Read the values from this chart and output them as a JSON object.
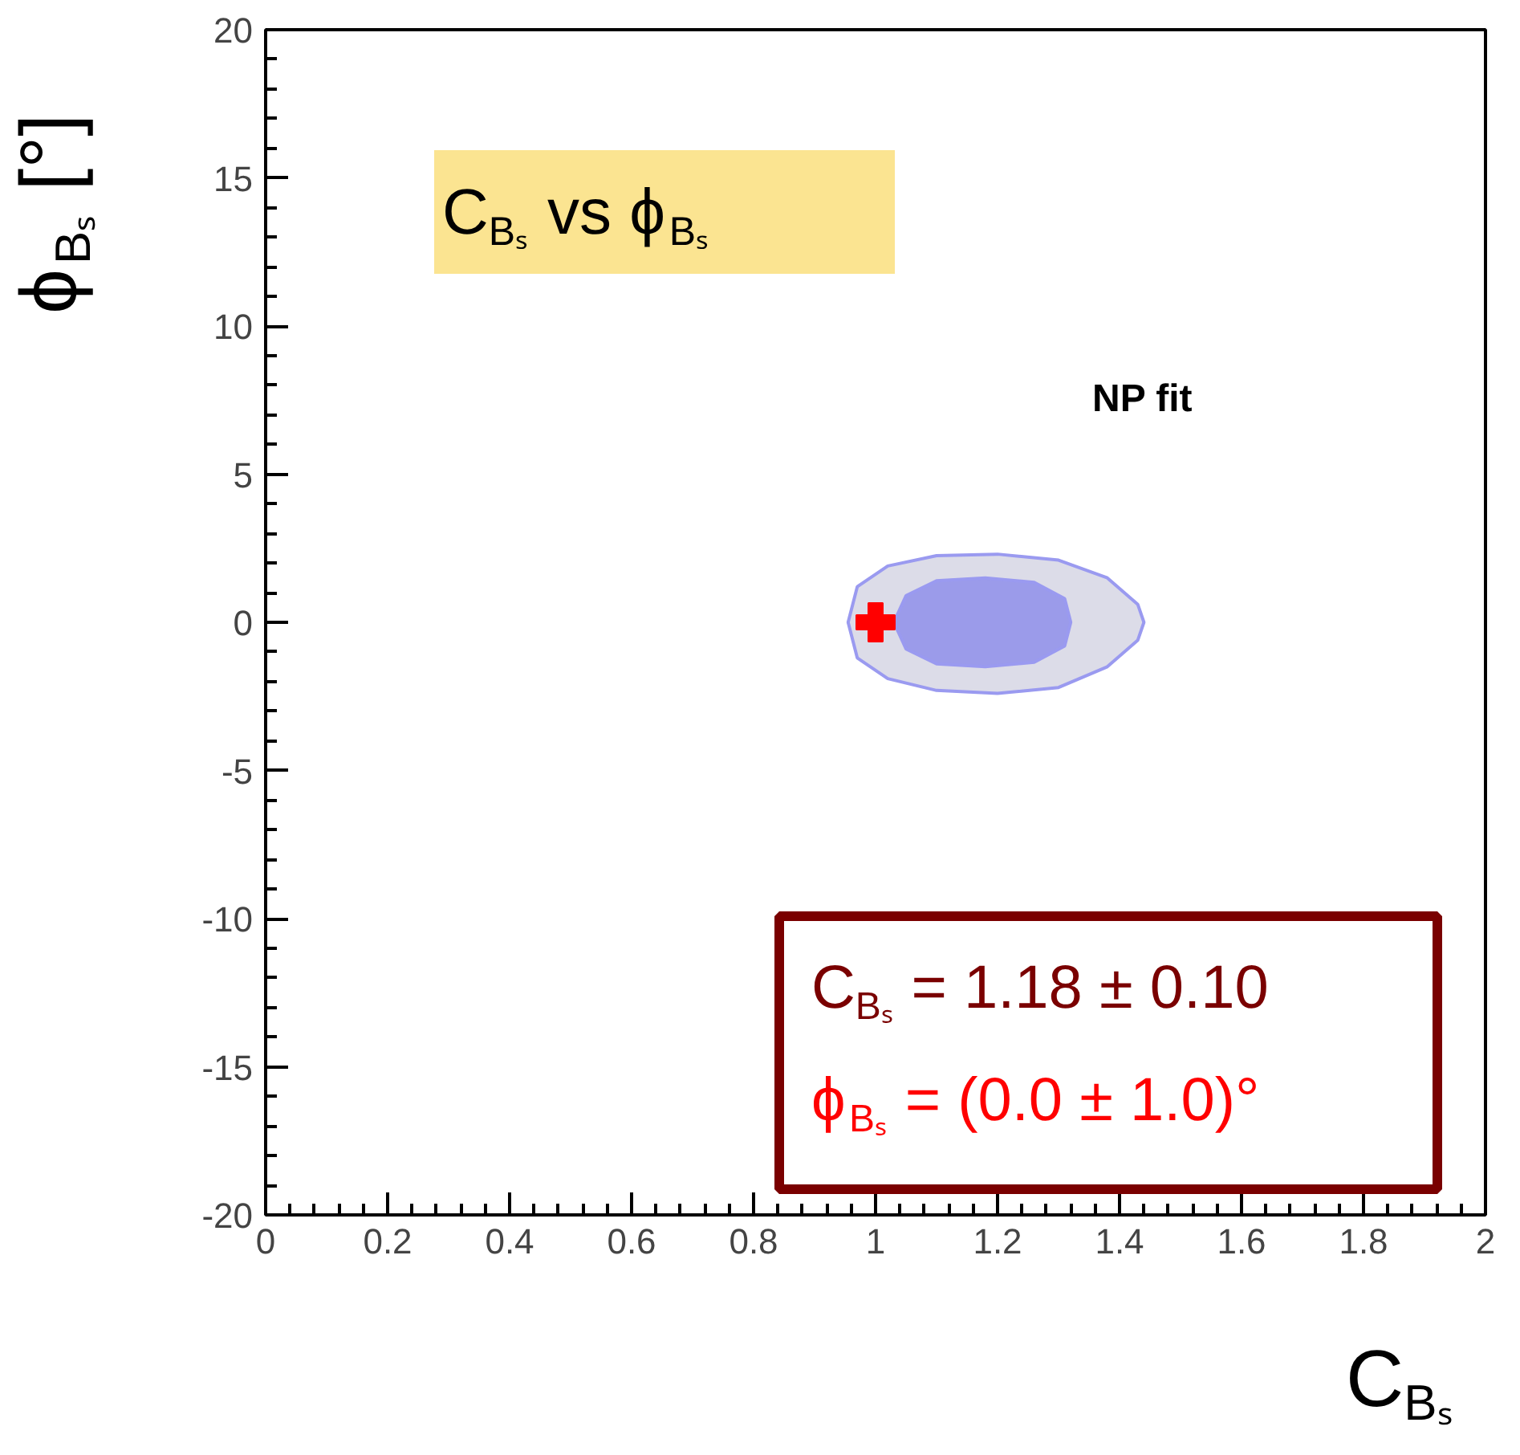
{
  "chart_data": {
    "type": "scatter",
    "xlabel": "C$_{Bₛ}$",
    "ylabel": "ϕ$_{Bₛ}$ [°]",
    "xlim": [
      0,
      2
    ],
    "ylim": [
      -20,
      20
    ],
    "xticks": [
      0,
      0.2,
      0.4,
      0.6,
      0.8,
      1,
      1.2,
      1.4,
      1.6,
      1.8,
      2
    ],
    "yticks": [
      -20,
      -15,
      -10,
      -5,
      0,
      5,
      10,
      15,
      20
    ],
    "grid": false,
    "annotations": [
      "C$_{Bₛ}$ vs ϕ$_{Bₛ}$",
      "NP fit",
      "C$_{Bₛ}$ = 1.18 ± 0.10",
      "ϕ$_{Bₛ}$ = (0.0 ± 1.0)°"
    ],
    "series": [
      {
        "type": "area",
        "color": "#dcdce8",
        "x": [
          0.955,
          0.97,
          1.02,
          1.1,
          1.2,
          1.3,
          1.38,
          1.43,
          1.44,
          1.43,
          1.38,
          1.3,
          1.2,
          1.1,
          1.02,
          0.97
        ],
        "values": [
          0,
          1.2,
          1.9,
          2.25,
          2.3,
          2.1,
          1.5,
          0.6,
          0,
          -0.6,
          -1.5,
          -2.2,
          -2.4,
          -2.3,
          -1.9,
          -1.2
        ]
      },
      {
        "type": "area",
        "color": "#9b9bea",
        "x": [
          1.03,
          1.05,
          1.1,
          1.18,
          1.26,
          1.31,
          1.32,
          1.31,
          1.26,
          1.18,
          1.1,
          1.05
        ],
        "values": [
          0,
          0.9,
          1.4,
          1.5,
          1.35,
          0.8,
          0,
          -0.8,
          -1.35,
          -1.5,
          -1.4,
          -0.9
        ]
      },
      {
        "type": "scatter",
        "marker": "cross",
        "color": "#ff0000",
        "x": [
          1
        ],
        "values": [
          0
        ]
      }
    ]
  }
}
